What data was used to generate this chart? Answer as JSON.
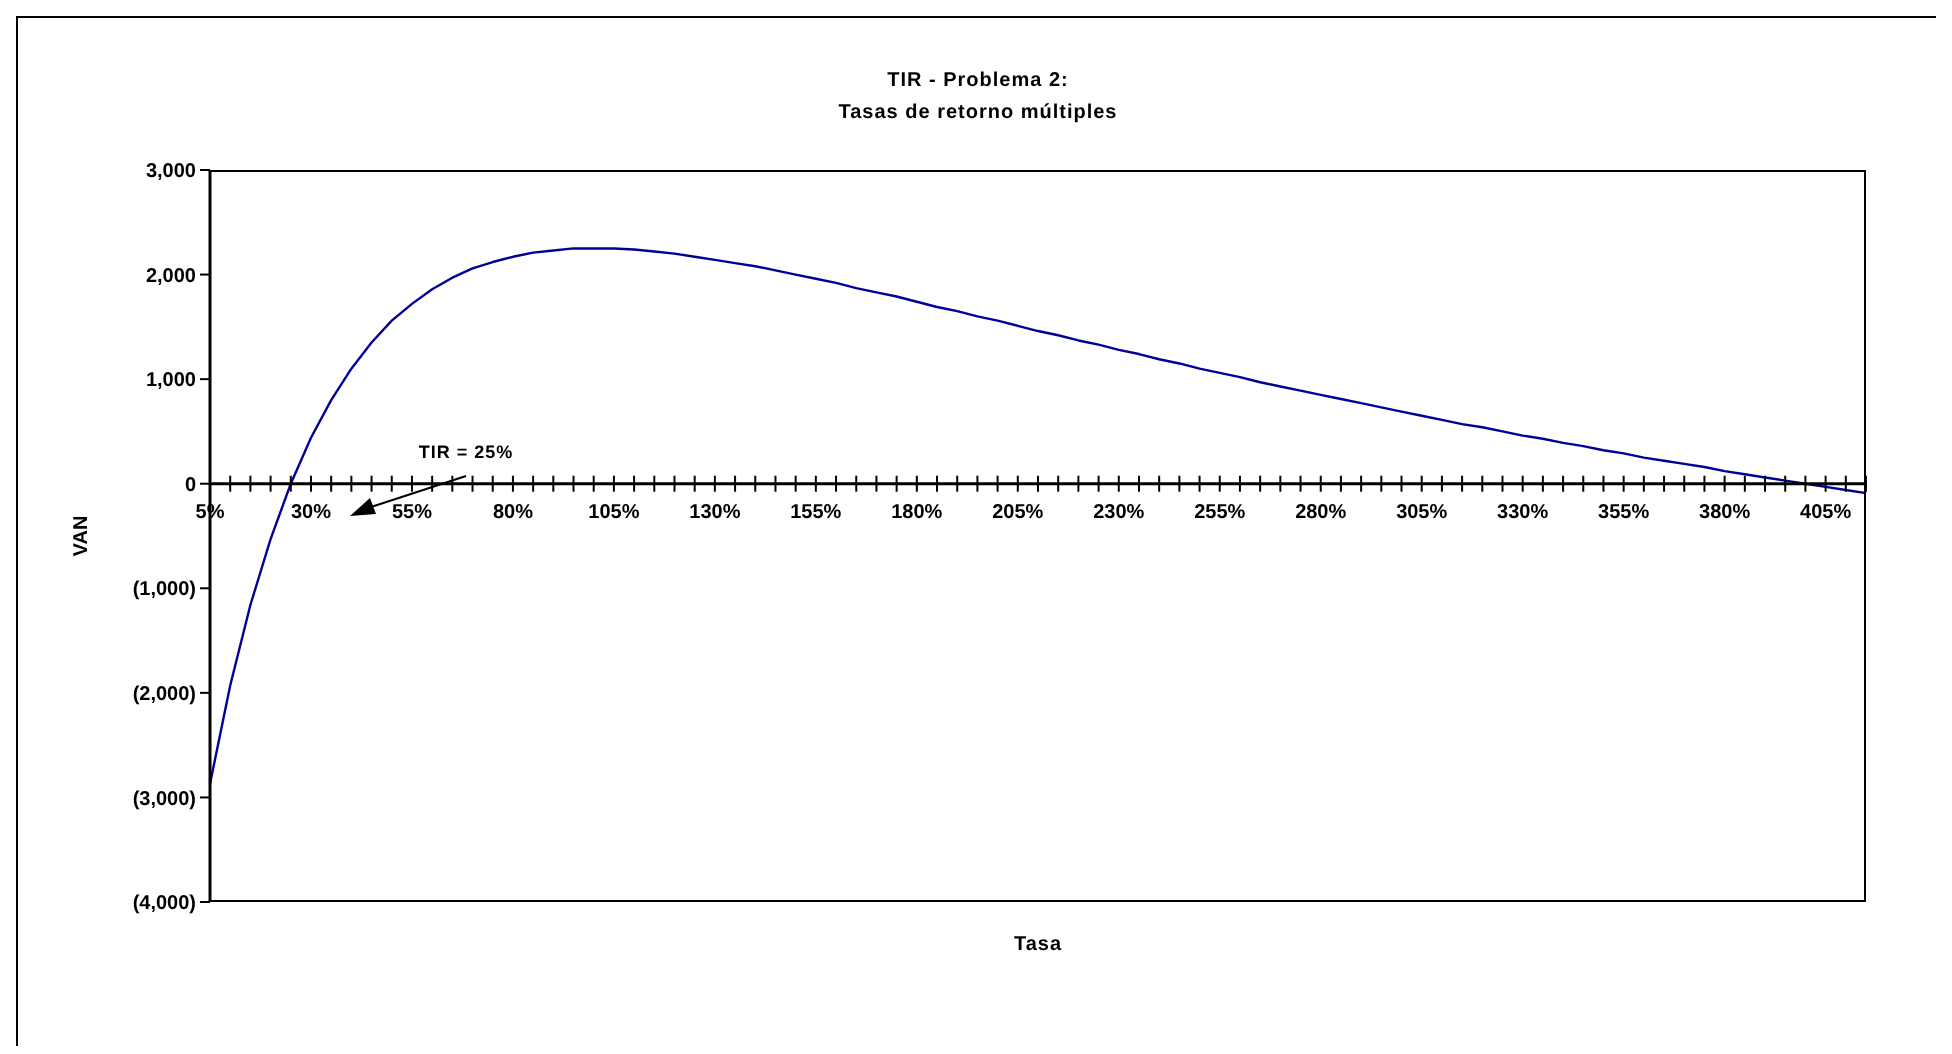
{
  "chart_data": {
    "type": "line",
    "title": "TIR - Problema 2:\nTasas de retorno múltiples",
    "xlabel": "Tasa",
    "ylabel": "VAN",
    "categories": [
      "5%",
      null,
      null,
      null,
      null,
      "30%",
      null,
      null,
      null,
      null,
      "55%",
      null,
      null,
      null,
      null,
      "80%",
      null,
      null,
      null,
      null,
      "105%",
      null,
      null,
      null,
      null,
      "130%",
      null,
      null,
      null,
      null,
      "155%",
      null,
      null,
      null,
      null,
      "180%",
      null,
      null,
      null,
      null,
      "205%",
      null,
      null,
      null,
      null,
      "230%",
      null,
      null,
      null,
      null,
      "255%",
      null,
      null,
      null,
      null,
      "280%",
      null,
      null,
      null,
      null,
      "305%",
      null,
      null,
      null,
      null,
      "330%",
      null,
      null,
      null,
      null,
      "355%",
      null,
      null,
      null,
      null,
      "380%",
      null,
      null,
      null,
      null,
      "405%",
      null,
      null
    ],
    "series": [
      {
        "color": "#000099",
        "values": [
          -2870,
          -1930,
          -1160,
          -530,
          0,
          440,
          800,
          1100,
          1350,
          1560,
          1720,
          1860,
          1970,
          2060,
          2120,
          2170,
          2210,
          2230,
          2250,
          2250,
          2250,
          2240,
          2220,
          2200,
          2170,
          2140,
          2110,
          2080,
          2040,
          2000,
          1960,
          1920,
          1870,
          1830,
          1790,
          1740,
          1690,
          1650,
          1600,
          1560,
          1510,
          1460,
          1420,
          1370,
          1330,
          1280,
          1240,
          1190,
          1150,
          1100,
          1060,
          1020,
          970,
          930,
          890,
          850,
          810,
          770,
          730,
          690,
          650,
          610,
          570,
          540,
          500,
          460,
          430,
          390,
          360,
          320,
          290,
          250,
          220,
          190,
          160,
          120,
          90,
          60,
          30,
          0,
          -30,
          -60,
          -90
        ]
      }
    ],
    "ylim": [
      -4000,
      3000
    ],
    "yticks": [
      {
        "value": -4000,
        "label": "(4,000)"
      },
      {
        "value": -3000,
        "label": "(3,000)"
      },
      {
        "value": -2000,
        "label": "(2,000)"
      },
      {
        "value": -1000,
        "label": "(1,000)"
      },
      {
        "value": 0,
        "label": "0"
      },
      {
        "value": 1000,
        "label": "1,000"
      },
      {
        "value": 2000,
        "label": "2,000"
      },
      {
        "value": 3000,
        "label": "3,000"
      }
    ],
    "marker": "none",
    "line_style": "solid",
    "annotations": [
      "TIR = 25%"
    ]
  }
}
